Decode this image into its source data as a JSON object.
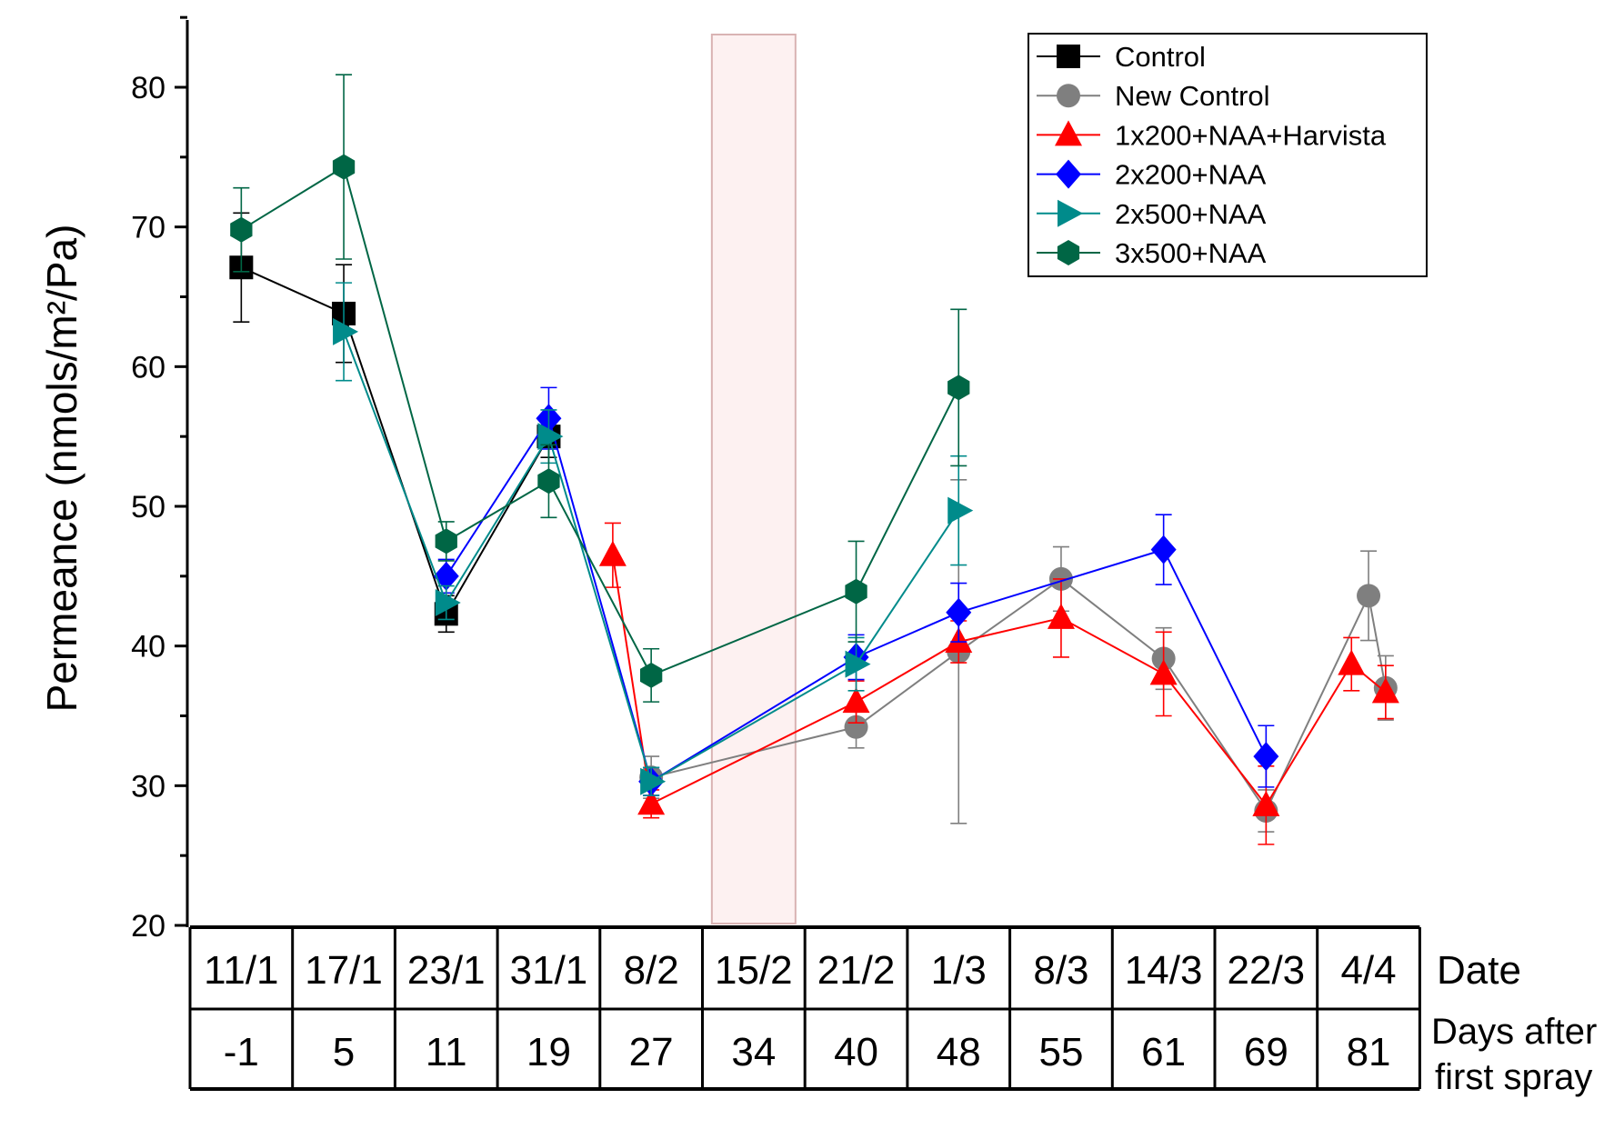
{
  "chart_data": {
    "type": "line",
    "ylabel": "Permeance (nmols/m²/Pa)",
    "ylim": [
      20,
      85
    ],
    "yticks": [
      20,
      30,
      40,
      50,
      60,
      70,
      80
    ],
    "x": [
      -1,
      5,
      11,
      19,
      27,
      34,
      40,
      48,
      55,
      61,
      69,
      81
    ],
    "dates": [
      "11/1",
      "17/1",
      "23/1",
      "31/1",
      "8/2",
      "15/2",
      "21/2",
      "1/3",
      "8/3",
      "14/3",
      "22/3",
      "4/4"
    ],
    "table_row_titles": [
      "Date",
      "Days after first spray"
    ],
    "highlight_band": {
      "x_center": 34
    },
    "legend_position": "top-right",
    "series": [
      {
        "name": "Control",
        "color": "#000000",
        "marker": "square",
        "points": [
          [
            -1,
            67.1,
            3.9
          ],
          [
            5,
            63.8,
            3.5
          ],
          [
            11,
            42.3,
            1.3
          ],
          [
            19,
            55.0,
            1.5
          ]
        ]
      },
      {
        "name": "New Control",
        "color": "#7f7f7f",
        "marker": "circle",
        "points": [
          [
            27,
            30.6,
            1.5
          ],
          [
            40,
            34.2,
            1.5
          ],
          [
            48,
            39.6,
            12.3
          ],
          [
            55,
            44.8,
            2.3
          ],
          [
            61,
            39.1,
            2.2
          ],
          [
            69,
            28.2,
            1.5
          ],
          [
            81,
            43.6,
            3.2
          ],
          [
            83,
            37.0,
            2.3
          ]
        ]
      },
      {
        "name": "1x200+NAA+Harvista",
        "color": "#ff0000",
        "marker": "triangle-up",
        "points": [
          [
            24,
            46.5,
            2.3
          ],
          [
            27,
            28.7,
            1.0
          ],
          [
            40,
            36.0,
            1.5
          ],
          [
            48,
            40.3,
            1.5
          ],
          [
            55,
            42.0,
            2.8
          ],
          [
            61,
            38.0,
            3.0
          ],
          [
            69,
            28.6,
            2.8
          ],
          [
            79,
            38.7,
            1.9
          ],
          [
            83,
            36.7,
            1.9
          ]
        ]
      },
      {
        "name": "2x200+NAA",
        "color": "#0000ff",
        "marker": "diamond",
        "points": [
          [
            11,
            45.0,
            1.2
          ],
          [
            19,
            56.3,
            2.2
          ],
          [
            27,
            30.3,
            1.0
          ],
          [
            40,
            39.2,
            1.6
          ],
          [
            48,
            42.4,
            2.1
          ],
          [
            61,
            46.9,
            2.5
          ],
          [
            69,
            32.1,
            2.2
          ]
        ]
      },
      {
        "name": "2x500+NAA",
        "color": "#008b8b",
        "marker": "triangle-right",
        "points": [
          [
            5,
            62.5,
            3.5
          ],
          [
            11,
            43.1,
            1.2
          ],
          [
            19,
            55.0,
            1.9
          ],
          [
            27,
            30.3,
            1.0
          ],
          [
            40,
            38.7,
            1.9
          ],
          [
            48,
            49.7,
            3.9
          ]
        ]
      },
      {
        "name": "3x500+NAA",
        "color": "#006645",
        "marker": "hexagon",
        "points": [
          [
            -1,
            69.8,
            3.0
          ],
          [
            5,
            74.3,
            6.6
          ],
          [
            11,
            47.5,
            1.4
          ],
          [
            19,
            51.8,
            2.6
          ],
          [
            27,
            37.9,
            1.9
          ],
          [
            40,
            43.9,
            3.6
          ],
          [
            48,
            58.5,
            5.6
          ]
        ]
      }
    ]
  }
}
